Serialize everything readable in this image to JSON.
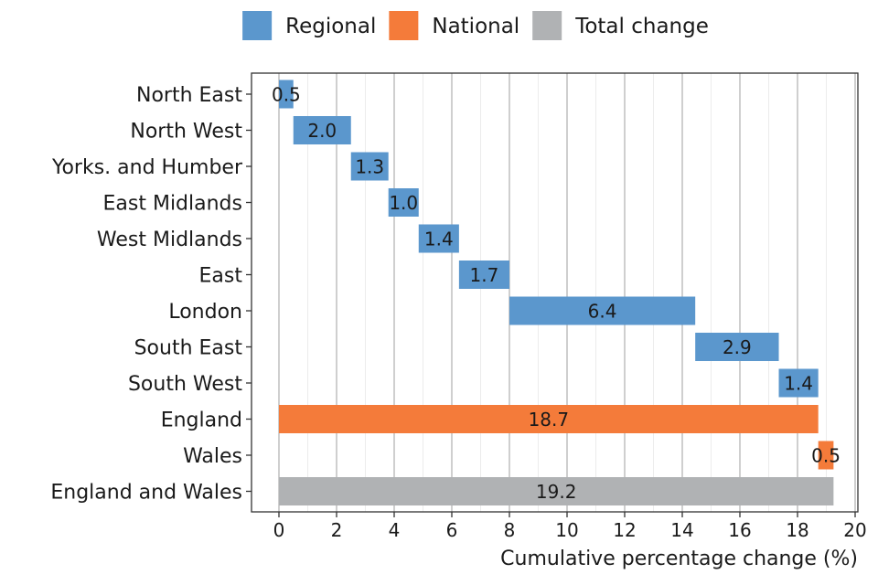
{
  "chart_data": {
    "type": "waterfall",
    "xlabel": "Cumulative percentage change (%)",
    "xlim": [
      0,
      20
    ],
    "x_ticks": [
      "0",
      "2",
      "4",
      "6",
      "8",
      "10",
      "12",
      "14",
      "16",
      "18",
      "20"
    ],
    "grid": true,
    "legend_position": "top",
    "legend": [
      {
        "name": "Regional",
        "color": "#5b97cd"
      },
      {
        "name": "National",
        "color": "#f47b3a"
      },
      {
        "name": "Total change",
        "color": "#b0b2b4"
      }
    ],
    "bars": [
      {
        "category": "North East",
        "group": "Regional",
        "start": 0.0,
        "end": 0.5,
        "label": "0.5"
      },
      {
        "category": "North West",
        "group": "Regional",
        "start": 0.5,
        "end": 2.5,
        "label": "2.0"
      },
      {
        "category": "Yorks. and Humber",
        "group": "Regional",
        "start": 2.5,
        "end": 3.8,
        "label": "1.3"
      },
      {
        "category": "East Midlands",
        "group": "Regional",
        "start": 3.8,
        "end": 4.85,
        "label": "1.0"
      },
      {
        "category": "West Midlands",
        "group": "Regional",
        "start": 4.85,
        "end": 6.25,
        "label": "1.4"
      },
      {
        "category": "East",
        "group": "Regional",
        "start": 6.25,
        "end": 8.0,
        "label": "1.7"
      },
      {
        "category": "London",
        "group": "Regional",
        "start": 8.0,
        "end": 14.45,
        "label": "6.4"
      },
      {
        "category": "South East",
        "group": "Regional",
        "start": 14.45,
        "end": 17.35,
        "label": "2.9"
      },
      {
        "category": "South West",
        "group": "Regional",
        "start": 17.35,
        "end": 18.72,
        "label": "1.4"
      },
      {
        "category": "England",
        "group": "National",
        "start": 0.0,
        "end": 18.72,
        "label": "18.7"
      },
      {
        "category": "Wales",
        "group": "National",
        "start": 18.72,
        "end": 19.25,
        "label": "0.5"
      },
      {
        "category": "England and Wales",
        "group": "Total change",
        "start": 0.0,
        "end": 19.25,
        "label": "19.2"
      }
    ]
  }
}
